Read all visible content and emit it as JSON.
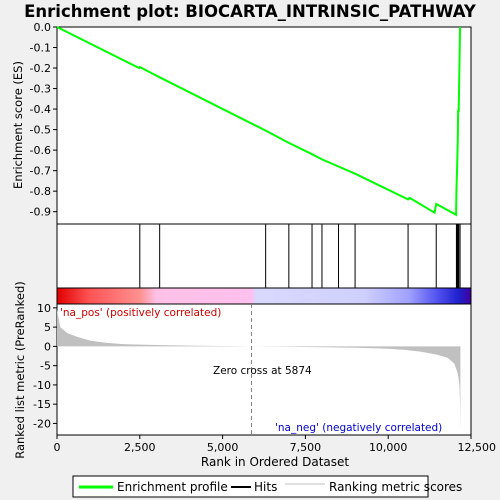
{
  "chart_data": {
    "type": "line",
    "title": "Enrichment plot: BIOCARTA_INTRINSIC_PATHWAY",
    "xlabel": "Rank in Ordered Dataset",
    "ylabel_top": "Enrichment score (ES)",
    "ylabel_bottom": "Ranked list metric (PreRanked)",
    "xlim": [
      0,
      12500
    ],
    "x_ticks": [
      0,
      2500,
      5000,
      7500,
      10000,
      12500
    ],
    "x_tick_labels": [
      "0",
      "2,500",
      "5,000",
      "7,500",
      "10,000",
      "12,500"
    ],
    "es_ylim": [
      -0.96,
      0.0
    ],
    "es_ticks": [
      0.0,
      -0.1,
      -0.2,
      -0.3,
      -0.4,
      -0.5,
      -0.6,
      -0.7,
      -0.8,
      -0.9
    ],
    "es_tick_labels": [
      "0.0",
      "-0.1",
      "-0.2",
      "-0.3",
      "-0.4",
      "-0.5",
      "-0.6",
      "-0.7",
      "-0.8",
      "-0.9"
    ],
    "metric_ylim": [
      -23,
      11
    ],
    "metric_ticks": [
      10,
      5,
      0,
      -5,
      -10,
      -15,
      -20
    ],
    "metric_tick_labels": [
      "10",
      "5",
      "0",
      "-5",
      "-10",
      "-15",
      "-20"
    ],
    "enrichment_profile": {
      "x": [
        0,
        2480,
        2500,
        3100,
        6300,
        7000,
        7700,
        8000,
        8500,
        9000,
        10600,
        10650,
        11400,
        11450,
        12050,
        12060,
        12080,
        12100,
        12110,
        12130,
        12170
      ],
      "y": [
        0.0,
        -0.2,
        -0.195,
        -0.245,
        -0.505,
        -0.565,
        -0.62,
        -0.645,
        -0.68,
        -0.715,
        -0.84,
        -0.833,
        -0.905,
        -0.862,
        -0.915,
        -0.805,
        -0.685,
        -0.55,
        -0.41,
        -0.41,
        0.0
      ]
    },
    "hits": [
      2500,
      3100,
      6300,
      7000,
      7700,
      8000,
      8500,
      9000,
      10600,
      11450,
      12060,
      12080,
      12100,
      12110,
      12130,
      12170
    ],
    "ranked_metric": {
      "x": [
        0,
        100,
        300,
        600,
        1000,
        1500,
        2000,
        3000,
        4000,
        5000,
        5874,
        7000,
        8000,
        9000,
        10000,
        10500,
        11000,
        11500,
        11800,
        12000,
        12100,
        12150,
        12170,
        12180
      ],
      "y": [
        9.5,
        5.0,
        3.5,
        2.5,
        1.5,
        0.9,
        0.6,
        0.35,
        0.2,
        0.1,
        0.0,
        -0.1,
        -0.2,
        -0.35,
        -0.6,
        -0.9,
        -1.4,
        -2.2,
        -3.0,
        -4.5,
        -7.0,
        -10.0,
        -15.0,
        -22.0
      ]
    },
    "zero_cross_label": "Zero cross at 5874",
    "zero_cross": 5874,
    "pos_label": "'na_pos' (positively correlated)",
    "neg_label": "'na_neg' (negatively correlated)",
    "legend": {
      "items": [
        "Enrichment profile",
        "Hits",
        "Ranking metric scores"
      ],
      "placement": "bottom"
    },
    "colors": {
      "profile": "#00ff00",
      "hits": "#000000",
      "metric": "#c0c0c0",
      "zero_line": "#808080",
      "pos_label": "#cc0000",
      "neg_label": "#0000cc"
    }
  }
}
